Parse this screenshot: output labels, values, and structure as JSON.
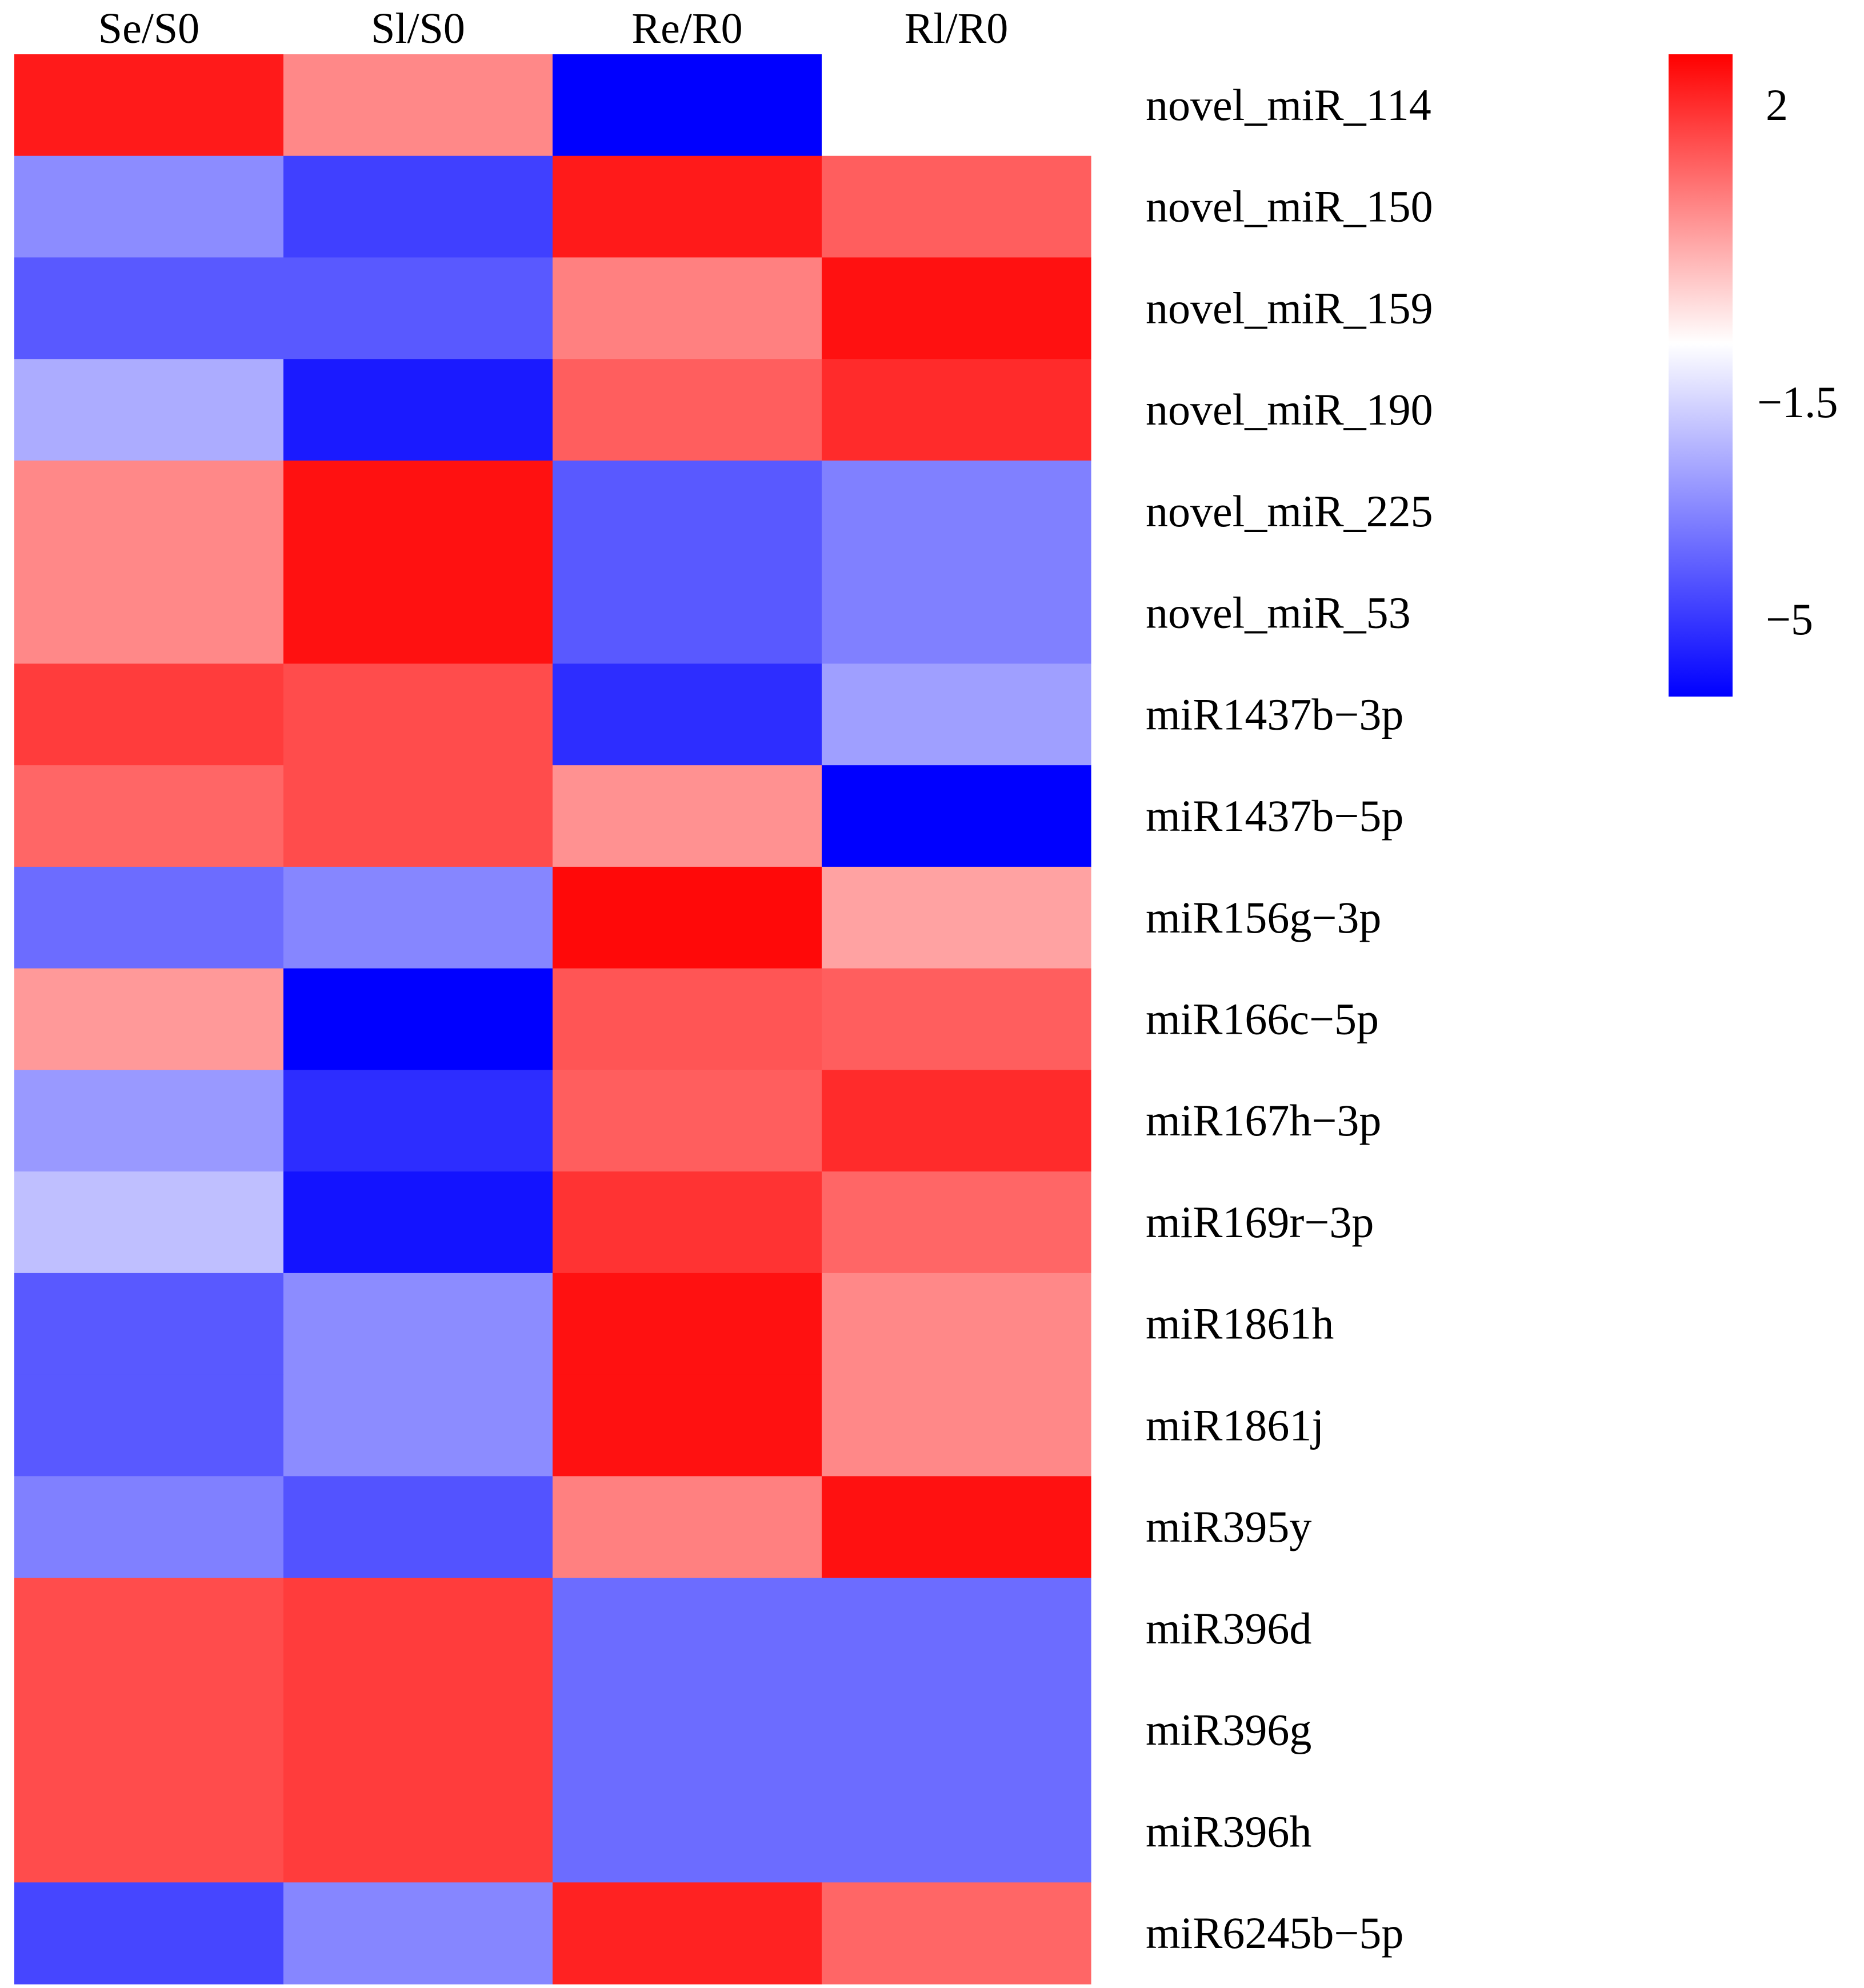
{
  "chart_data": {
    "type": "heatmap",
    "title": "",
    "columns": [
      "Se/S0",
      "Sl/S0",
      "Re/R0",
      "Rl/R0"
    ],
    "rows": [
      {
        "label": "novel_miR_114",
        "values": [
          1.7,
          0.4,
          -5.0,
          -1.0
        ]
      },
      {
        "label": "novel_miR_150",
        "values": [
          -2.8,
          -4.0,
          1.7,
          0.9
        ]
      },
      {
        "label": "novel_miR_159",
        "values": [
          -3.6,
          -3.6,
          0.5,
          1.8
        ]
      },
      {
        "label": "novel_miR_190",
        "values": [
          -2.3,
          -4.6,
          0.9,
          1.5
        ]
      },
      {
        "label": "novel_miR_225",
        "values": [
          0.4,
          1.8,
          -3.6,
          -3.0
        ]
      },
      {
        "label": "novel_miR_53",
        "values": [
          0.4,
          1.8,
          -3.6,
          -3.0
        ]
      },
      {
        "label": "miR1437b−3p",
        "values": [
          1.3,
          1.1,
          -4.3,
          -2.5
        ]
      },
      {
        "label": "miR1437b−5p",
        "values": [
          0.8,
          1.1,
          0.3,
          -5.0
        ]
      },
      {
        "label": "miR156g−3p",
        "values": [
          -3.3,
          -2.9,
          1.9,
          0.1
        ]
      },
      {
        "label": "miR166c−5p",
        "values": [
          0.2,
          -5.0,
          1.0,
          0.9
        ]
      },
      {
        "label": "miR167h−3p",
        "values": [
          -2.6,
          -4.3,
          0.9,
          1.5
        ]
      },
      {
        "label": "miR169r−3p",
        "values": [
          -2.0,
          -4.7,
          1.4,
          0.8
        ]
      },
      {
        "label": "miR1861h",
        "values": [
          -3.6,
          -2.8,
          1.8,
          0.4
        ]
      },
      {
        "label": "miR1861j",
        "values": [
          -3.6,
          -2.8,
          1.8,
          0.4
        ]
      },
      {
        "label": "miR395y",
        "values": [
          -3.0,
          -3.7,
          0.5,
          1.8
        ]
      },
      {
        "label": "miR396d",
        "values": [
          1.1,
          1.3,
          -3.3,
          -3.3
        ]
      },
      {
        "label": "miR396g",
        "values": [
          1.1,
          1.3,
          -3.3,
          -3.3
        ]
      },
      {
        "label": "miR396h",
        "values": [
          1.1,
          1.3,
          -3.3,
          -3.3
        ]
      },
      {
        "label": "miR6245b−5p",
        "values": [
          -3.9,
          -2.9,
          1.6,
          0.8
        ]
      }
    ],
    "row_groups": [
      {
        "labels": [
          "novel_miR_225",
          "novel_miR_53"
        ]
      },
      {
        "labels": [
          "miR1861h",
          "miR1861j"
        ]
      },
      {
        "labels": [
          "miR396d",
          "miR396g",
          "miR396h"
        ]
      }
    ],
    "color_scale": {
      "min": -5.0,
      "mid": -1.0,
      "max": 2.0,
      "low_color": "#0000ff",
      "mid_color": "#ffffff",
      "high_color": "#ff0000"
    },
    "legend": {
      "placement": "top-right",
      "tick_labels": [
        "2",
        "−1.5",
        "−5"
      ],
      "tick_values": [
        2.0,
        -1.5,
        -5.0
      ]
    }
  }
}
